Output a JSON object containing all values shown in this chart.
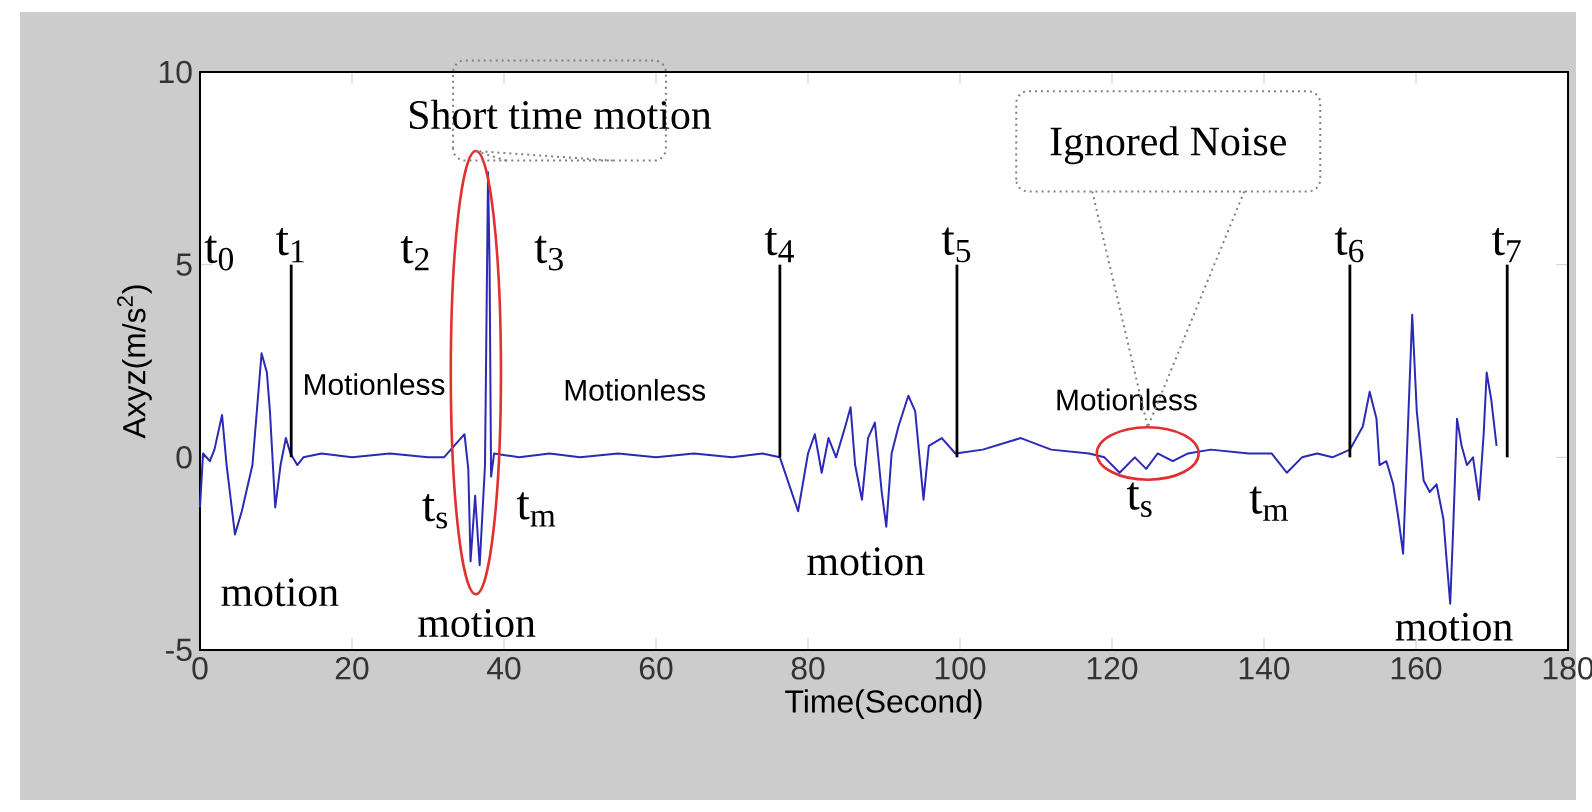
{
  "chart_data": {
    "type": "line",
    "xlabel": "Time(Second)",
    "ylabel": "Axyz(m/s$^{2}$)",
    "xlim": [
      0,
      180
    ],
    "ylim": [
      -5,
      10
    ],
    "xticks": [
      0,
      20,
      40,
      60,
      80,
      100,
      120,
      140,
      160,
      180
    ],
    "yticks": [
      -5,
      0,
      5,
      10
    ],
    "series": [
      {
        "color": "#2a2ab4",
        "x": [
          0,
          0.4,
          1.3,
          1.9,
          2.9,
          3.5,
          4.6,
          5.5,
          6.9,
          8.1,
          8.8,
          9.2,
          9.9,
          10.6,
          11.3,
          11.9,
          12.8,
          13.6,
          16,
          20,
          25,
          30,
          32.1,
          34.8,
          35.3,
          35.6,
          36.2,
          36.8,
          37.5,
          37.9,
          38.1,
          38.3,
          38.7,
          42,
          46,
          50,
          55,
          60,
          65,
          70,
          74,
          76.3,
          78.7,
          80,
          80.9,
          81.8,
          82.7,
          83.7,
          84.9,
          85.6,
          86.2,
          87.1,
          87.9,
          88.8,
          89.7,
          90.3,
          91,
          91.9,
          93.2,
          94.1,
          95.2,
          95.9,
          97.6,
          99.4,
          103,
          108,
          112,
          117,
          119,
          121,
          123,
          124.5,
          126,
          128,
          130,
          133,
          138,
          141,
          143,
          145,
          147,
          149,
          151.3,
          153,
          153.9,
          154.8,
          155.2,
          156.1,
          157,
          157.7,
          158.3,
          158.9,
          159.5,
          160.1,
          161,
          161.8,
          162.7,
          163.6,
          164,
          164.5,
          164.9,
          165.4,
          166,
          166.7,
          167.5,
          168.3,
          168.9,
          169.3,
          169.9,
          170.6
        ],
        "values": [
          -1.3,
          0.1,
          -0.1,
          0.2,
          1.1,
          -0.2,
          -2,
          -1.4,
          -0.2,
          2.7,
          2.2,
          1.2,
          -1.3,
          -0.2,
          0.5,
          0.1,
          -0.2,
          0,
          0.1,
          0,
          0.1,
          0,
          0,
          0.6,
          -0.3,
          -2.7,
          -1,
          -2.8,
          -0.2,
          7.4,
          5,
          -0.5,
          0.1,
          0,
          0.1,
          0,
          0.1,
          0,
          0.1,
          0,
          0.1,
          0,
          -1.4,
          0.1,
          0.6,
          -0.4,
          0.5,
          0,
          0.8,
          1.3,
          -0.2,
          -1.1,
          0.5,
          0.9,
          -0.9,
          -1.8,
          0.1,
          0.8,
          1.6,
          1.2,
          -1.1,
          0.3,
          0.5,
          0.1,
          0.2,
          0.5,
          0.2,
          0.1,
          0,
          -0.4,
          0,
          -0.3,
          0.1,
          -0.1,
          0.1,
          0.2,
          0.1,
          0.1,
          -0.4,
          0,
          0.1,
          0,
          0.2,
          0.8,
          1.7,
          1,
          -0.2,
          -0.1,
          -0.7,
          -1.6,
          -2.5,
          0.6,
          3.7,
          1.2,
          -0.6,
          -0.9,
          -0.7,
          -1.6,
          -2.6,
          -3.8,
          -1.8,
          1,
          0.3,
          -0.2,
          0,
          -1.1,
          0.6,
          2.2,
          1.5,
          0.3
        ]
      }
    ],
    "ref_lines": [
      {
        "axis": "x",
        "value": 12,
        "label": "t$_{1}$",
        "color": "#000000"
      },
      {
        "axis": "x",
        "value": 76.3,
        "label": "t$_{4}$",
        "color": "#000000"
      },
      {
        "axis": "x",
        "value": 99.6,
        "label": "t$_{5}$",
        "color": "#000000"
      },
      {
        "axis": "x",
        "value": 151.3,
        "label": "t$_{6}$",
        "color": "#000000"
      },
      {
        "axis": "x",
        "value": 172,
        "label": "t$_{7}$",
        "color": "#000000"
      }
    ],
    "annotations": [
      "t$_{0}$",
      "t$_{2}$",
      "t$_{3}$",
      "t$_{s}$",
      "t$_{m}$",
      "t$_{s}$",
      "t$_{m}$",
      "motion",
      "motion",
      "motion",
      "motion",
      "Motionless",
      "Motionless",
      "Motionless",
      "Short time motion",
      "Ignored Noise"
    ]
  }
}
